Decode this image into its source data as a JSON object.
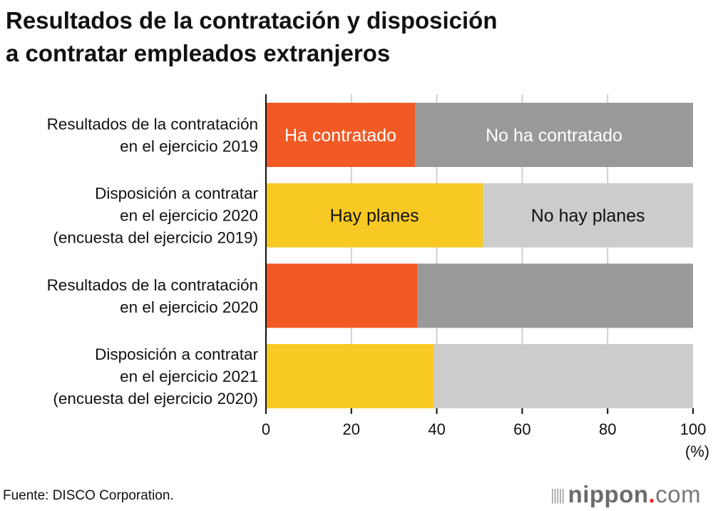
{
  "chart_data": {
    "type": "bar",
    "orientation": "horizontal",
    "stacked": true,
    "title": "Resultados de la contratación y disposición a contratar empleados extranjeros",
    "categories": [
      [
        "Resultados de la contratación",
        "en el ejercicio 2019"
      ],
      [
        "Disposición a contratar",
        "en el ejercicio 2020",
        "(encuesta del ejercicio 2019)"
      ],
      [
        "Resultados de la contratación",
        "en el ejercicio 2020"
      ],
      [
        "Disposición a contratar",
        "en el ejercicio 2021",
        "(encuesta del ejercicio 2020)"
      ]
    ],
    "bars": [
      {
        "first": 34.9,
        "first_label": "Ha contratado",
        "second_label": "No ha contratado",
        "first_color": "#f15a25",
        "second_color": "#999999",
        "label_color": "#ffffff"
      },
      {
        "first": 50.8,
        "first_label": "Hay planes",
        "second_label": "No hay planes",
        "first_color": "#f8c923",
        "second_color": "#cccccc",
        "label_color": "#111111"
      },
      {
        "first": 35.4,
        "first_label": "",
        "second_label": "",
        "first_color": "#f15a25",
        "second_color": "#999999",
        "label_color": "#ffffff"
      },
      {
        "first": 39.3,
        "first_label": "",
        "second_label": "",
        "first_color": "#f8c923",
        "second_color": "#cccccc",
        "label_color": "#111111"
      }
    ],
    "xlim": [
      0,
      100
    ],
    "xticks": [
      0,
      20,
      40,
      60,
      80,
      100
    ],
    "xunit": "(%)",
    "grid": true
  },
  "source": "Fuente: DISCO Corporation.",
  "logo": {
    "name": "nippon",
    "dot": ".",
    "suffix": "com"
  }
}
